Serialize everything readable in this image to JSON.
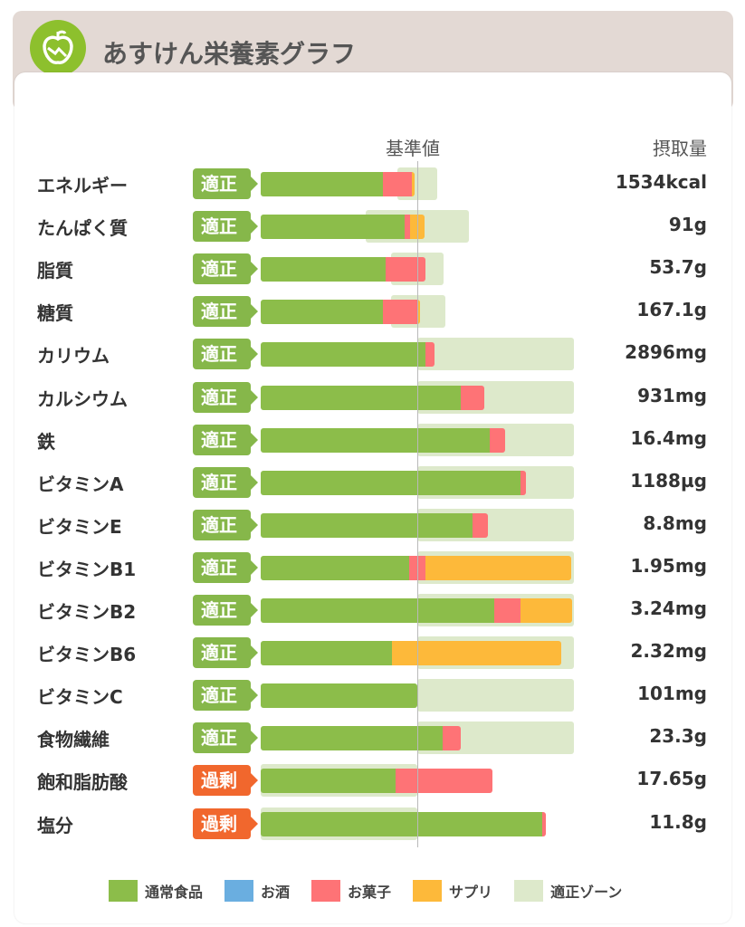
{
  "header": {
    "title": "あすけん栄養素グラフ"
  },
  "colors": {
    "normal": "#8cbd4a",
    "alcohol": "#6aaee0",
    "snack": "#fe7376",
    "supplement": "#fdb93a",
    "zone": "#dde9cb",
    "ok": "#86b74a",
    "over": "#f1672d"
  },
  "chart_data": {
    "type": "bar",
    "title": "あすけん栄養素グラフ",
    "reference_label": "基準値",
    "value_column_label": "摂取量",
    "unit": "percent of reference",
    "xlim": [
      0,
      200
    ],
    "legend": [
      "通常食品",
      "お酒",
      "お菓子",
      "サプリ",
      "適正ゾーン"
    ],
    "legend_placement": "bottom",
    "rows": [
      {
        "name": "エネルギー",
        "status": "適正",
        "value": "1534kcal",
        "normal": 78,
        "alcohol": 0,
        "snack": 18.5,
        "supplement": 2,
        "zone": [
          87,
          113
        ]
      },
      {
        "name": "たんぱく質",
        "status": "適正",
        "value": "91g",
        "normal": 92,
        "alcohol": 0,
        "snack": 3.5,
        "supplement": 9,
        "zone": [
          67,
          133
        ]
      },
      {
        "name": "脂質",
        "status": "適正",
        "value": "53.7g",
        "normal": 80,
        "alcohol": 0,
        "snack": 25,
        "supplement": 0,
        "zone": [
          83,
          117
        ]
      },
      {
        "name": "糖質",
        "status": "適正",
        "value": "167.1g",
        "normal": 78,
        "alcohol": 0,
        "snack": 22,
        "supplement": 2,
        "zone": [
          83,
          118
        ]
      },
      {
        "name": "カリウム",
        "status": "適正",
        "value": "2896mg",
        "normal": 105,
        "alcohol": 0,
        "snack": 6,
        "supplement": 0,
        "zone": [
          100,
          200
        ]
      },
      {
        "name": "カルシウム",
        "status": "適正",
        "value": "931mg",
        "normal": 128,
        "alcohol": 0,
        "snack": 15,
        "supplement": 0,
        "zone": [
          100,
          200
        ]
      },
      {
        "name": "鉄",
        "status": "適正",
        "value": "16.4mg",
        "normal": 146,
        "alcohol": 0,
        "snack": 10,
        "supplement": 0,
        "zone": [
          100,
          200
        ]
      },
      {
        "name": "ビタミンA",
        "status": "適正",
        "value": "1188µg",
        "normal": 166,
        "alcohol": 0,
        "snack": 3.5,
        "supplement": 0,
        "zone": [
          100,
          200
        ]
      },
      {
        "name": "ビタミンE",
        "status": "適正",
        "value": "8.8mg",
        "normal": 135,
        "alcohol": 0,
        "snack": 10,
        "supplement": 0,
        "zone": [
          100,
          200
        ]
      },
      {
        "name": "ビタミンB1",
        "status": "適正",
        "value": "1.95mg",
        "normal": 95,
        "alcohol": 0,
        "snack": 10,
        "supplement": 93,
        "zone": [
          100,
          200
        ]
      },
      {
        "name": "ビタミンB2",
        "status": "適正",
        "value": "3.24mg",
        "normal": 149,
        "alcohol": 0,
        "snack": 17,
        "supplement": 33,
        "zone": [
          100,
          200
        ]
      },
      {
        "name": "ビタミンB6",
        "status": "適正",
        "value": "2.32mg",
        "normal": 84,
        "alcohol": 0,
        "snack": 0,
        "supplement": 108,
        "zone": [
          100,
          200
        ]
      },
      {
        "name": "ビタミンC",
        "status": "適正",
        "value": "101mg",
        "normal": 100,
        "alcohol": 0,
        "snack": 0,
        "supplement": 0,
        "zone": [
          100,
          200
        ]
      },
      {
        "name": "食物繊維",
        "status": "適正",
        "value": "23.3g",
        "normal": 116,
        "alcohol": 0,
        "snack": 12,
        "supplement": 0,
        "zone": [
          100,
          200
        ]
      },
      {
        "name": "飽和脂肪酸",
        "status": "過剰",
        "value": "17.65g",
        "normal": 86,
        "alcohol": 0,
        "snack": 62,
        "supplement": 0,
        "zone": [
          0,
          100
        ]
      },
      {
        "name": "塩分",
        "status": "過剰",
        "value": "11.8g",
        "normal": 180,
        "alcohol": 0,
        "snack": 2,
        "supplement": 0,
        "zone": [
          0,
          100
        ]
      }
    ]
  }
}
